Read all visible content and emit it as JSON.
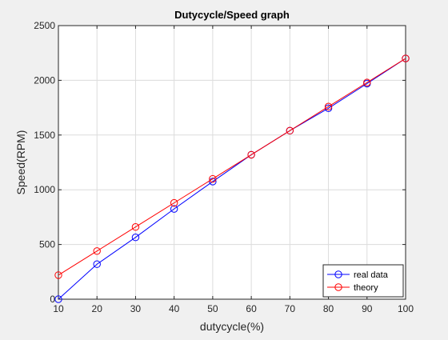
{
  "chart_data": {
    "type": "line",
    "title": "Dutycycle/Speed graph",
    "xlabel": "dutycycle(%)",
    "ylabel": "Speed(RPM)",
    "xlim": [
      10,
      100
    ],
    "ylim": [
      0,
      2500
    ],
    "xticks": [
      10,
      20,
      30,
      40,
      50,
      60,
      70,
      80,
      90,
      100
    ],
    "yticks": [
      0,
      500,
      1000,
      1500,
      2000,
      2500
    ],
    "grid": true,
    "legend_position": "bottom-right",
    "x": [
      10,
      20,
      30,
      40,
      50,
      60,
      70,
      80,
      90,
      100
    ],
    "series": [
      {
        "name": "real data",
        "color": "#0000ff",
        "marker": "circle",
        "values": [
          0,
          320,
          565,
          825,
          1075,
          1320,
          1540,
          1745,
          1970,
          2200
        ]
      },
      {
        "name": "theory",
        "color": "#ff0000",
        "marker": "circle",
        "values": [
          220,
          440,
          660,
          880,
          1100,
          1320,
          1540,
          1760,
          1980,
          2200
        ]
      }
    ]
  }
}
